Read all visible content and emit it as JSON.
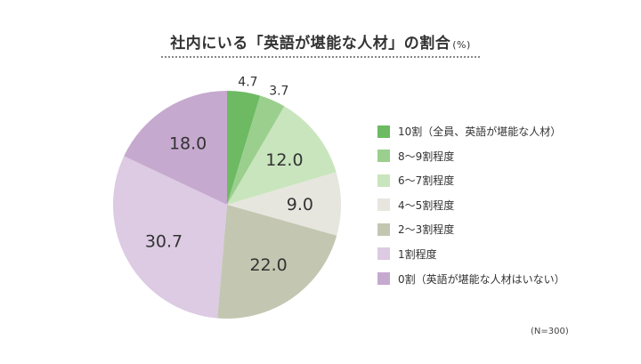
{
  "header": {
    "title": "社内にいる「英語が堪能な人材」の割合",
    "unit": "(%)"
  },
  "footnote": "(N=300)",
  "chart_data": {
    "type": "pie",
    "title": "社内にいる「英語が堪能な人材」の割合",
    "unit": "%",
    "legend_position": "right",
    "slices": [
      {
        "label": "10割（全員、英語が堪能な人材）",
        "value": 4.7,
        "value_label": "4.7",
        "color": "#6dba63"
      },
      {
        "label": "8〜9割程度",
        "value": 3.7,
        "value_label": "3.7",
        "color": "#9bcf8e"
      },
      {
        "label": "6〜7割程度",
        "value": 12.0,
        "value_label": "12.0",
        "color": "#c9e5bd"
      },
      {
        "label": "4〜5割程度",
        "value": 9.0,
        "value_label": "9.0",
        "color": "#e6e6df"
      },
      {
        "label": "2〜3割程度",
        "value": 22.0,
        "value_label": "22.0",
        "color": "#c3c7b1"
      },
      {
        "label": "1割程度",
        "value": 30.7,
        "value_label": "30.7",
        "color": "#dccbe3"
      },
      {
        "label": "0割（英語が堪能な人材はいない）",
        "value": 18.0,
        "value_label": "18.0",
        "color": "#c6a9cf"
      }
    ]
  }
}
